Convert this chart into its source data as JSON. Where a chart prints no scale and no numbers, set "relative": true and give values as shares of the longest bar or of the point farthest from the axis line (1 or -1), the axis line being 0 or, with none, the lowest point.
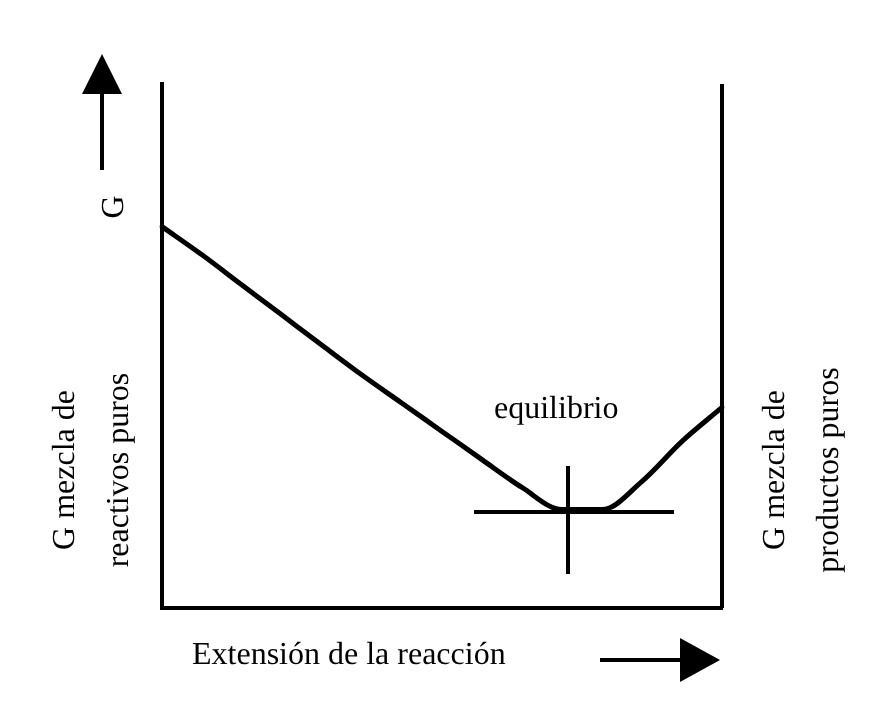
{
  "chart_data": {
    "type": "line",
    "relative": true,
    "ylabel": "G",
    "xlabel": "Extensión de la reacción",
    "categories": [
      null,
      null,
      null,
      null,
      null,
      null,
      null,
      null,
      null,
      null,
      null,
      null,
      null,
      null,
      null
    ],
    "series": [
      {
        "color": "#000000",
        "values": [
          1,
          0.926,
          0.847,
          0.768,
          0.689,
          0.611,
          0.537,
          0.463,
          0.389,
          0.316,
          0.258,
          0.258,
          0.332,
          0.437,
          0.526
        ]
      }
    ],
    "annotations": [
      "G mezcla de reactivos puros",
      "G mezcla de productos puros",
      "equilibrio"
    ],
    "grid": false,
    "legend": false,
    "marker": "none",
    "line_style": "solid",
    "tick_labels": false
  }
}
